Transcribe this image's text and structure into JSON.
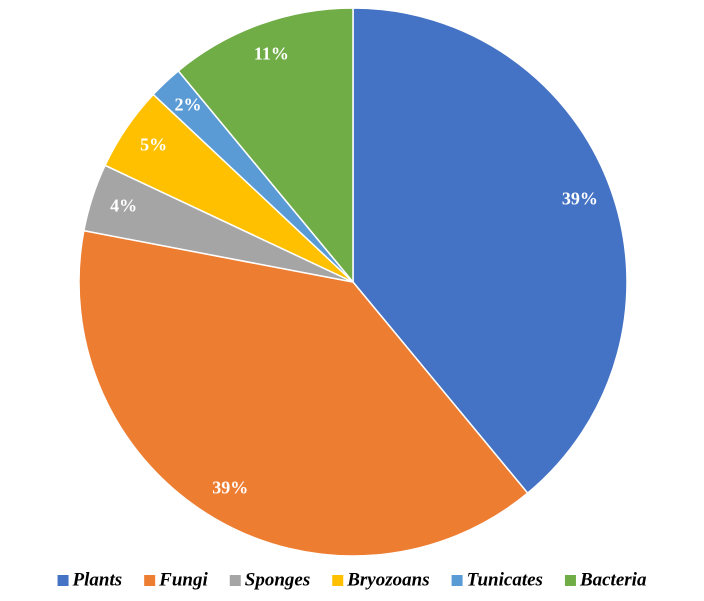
{
  "chart_data": {
    "type": "pie",
    "categories": [
      "Plants",
      "Fungi",
      "Sponges",
      "Bryozoans",
      "Tunicates",
      "Bacteria"
    ],
    "values": [
      39,
      39,
      4,
      5,
      2,
      11
    ],
    "value_labels": [
      "39%",
      "39%",
      "4%",
      "5%",
      "2%",
      "11%"
    ],
    "colors": [
      "#4472c4",
      "#ed7d31",
      "#a5a5a5",
      "#ffc000",
      "#5b9bd5",
      "#70ad47"
    ],
    "legend": "bottom"
  }
}
